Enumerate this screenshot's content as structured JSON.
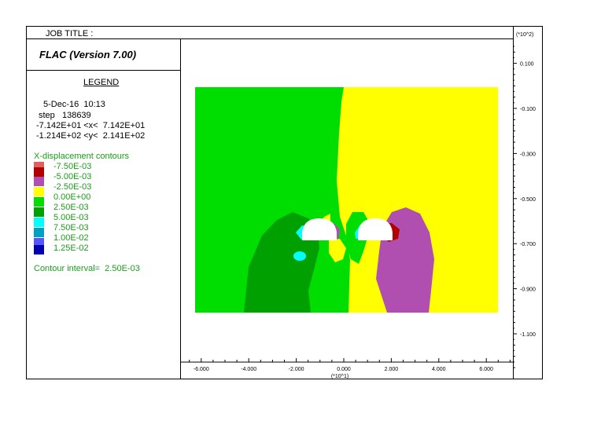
{
  "header": {
    "job_title": "JOB TITLE :",
    "program": "FLAC (Version 7.00)",
    "scale_label_right": "(*10^2)"
  },
  "legend": {
    "heading": "LEGEND",
    "date": "5-Dec-16  10:13",
    "step": "step   138639",
    "x_range": "-7.142E+01 <x<  7.142E+01",
    "y_range": "-1.214E+02 <y<  2.141E+02",
    "contour_title": "X-displacement contours",
    "contour_interval": "Contour interval=  2.50E-03",
    "items": [
      {
        "label": "-7.50E-03",
        "color": "#b30000"
      },
      {
        "label": "-5.00E-03",
        "color": "#b14fb1"
      },
      {
        "label": "-2.50E-03",
        "color": "#ffff00"
      },
      {
        "label": "0.00E+00",
        "color": "#ffff00"
      },
      {
        "label": "2.50E-03",
        "color": "#00dd00"
      },
      {
        "label": "5.00E-03",
        "color": "#00a000"
      },
      {
        "label": "7.50E-03",
        "color": "#00ffff"
      },
      {
        "label": "1.00E-02",
        "color": "#00a0c0"
      },
      {
        "label": "1.25E-02",
        "color": "#0000b0"
      }
    ]
  },
  "chart_data": {
    "type": "heatmap",
    "title": "X-displacement contours",
    "x_axis": {
      "multiplier_label": "(*10^1)",
      "ticks": [
        -6.0,
        -4.0,
        -2.0,
        0.0,
        2.0,
        4.0,
        6.0
      ],
      "tick_labels": [
        "-6.000",
        "-4.000",
        "-2.000",
        "0.000",
        "2.000",
        "4.000",
        "6.000"
      ]
    },
    "y_axis": {
      "multiplier_label": "(*10^2)",
      "ticks": [
        0.1,
        -0.1,
        -0.3,
        -0.5,
        -0.7,
        -0.9,
        -1.1
      ],
      "tick_labels": [
        "0.100",
        "-0.100",
        "-0.300",
        "-0.500",
        "-0.700",
        "-0.900",
        "-1.100"
      ]
    },
    "contour_interval": 0.0025,
    "levels": [
      -0.0075,
      -0.005,
      -0.0025,
      0.0,
      0.0025,
      0.005,
      0.0075,
      0.01,
      0.0125
    ],
    "colors": {
      "dark_red": "#b30000",
      "purple": "#b14fb1",
      "yellow": "#ffff00",
      "light_green": "#00dd00",
      "dark_green": "#00a000",
      "cyan": "#00ffff",
      "teal": "#00a0c0",
      "navy": "#0000b0",
      "pink": "#e06060",
      "opening": "#ffffff"
    }
  }
}
